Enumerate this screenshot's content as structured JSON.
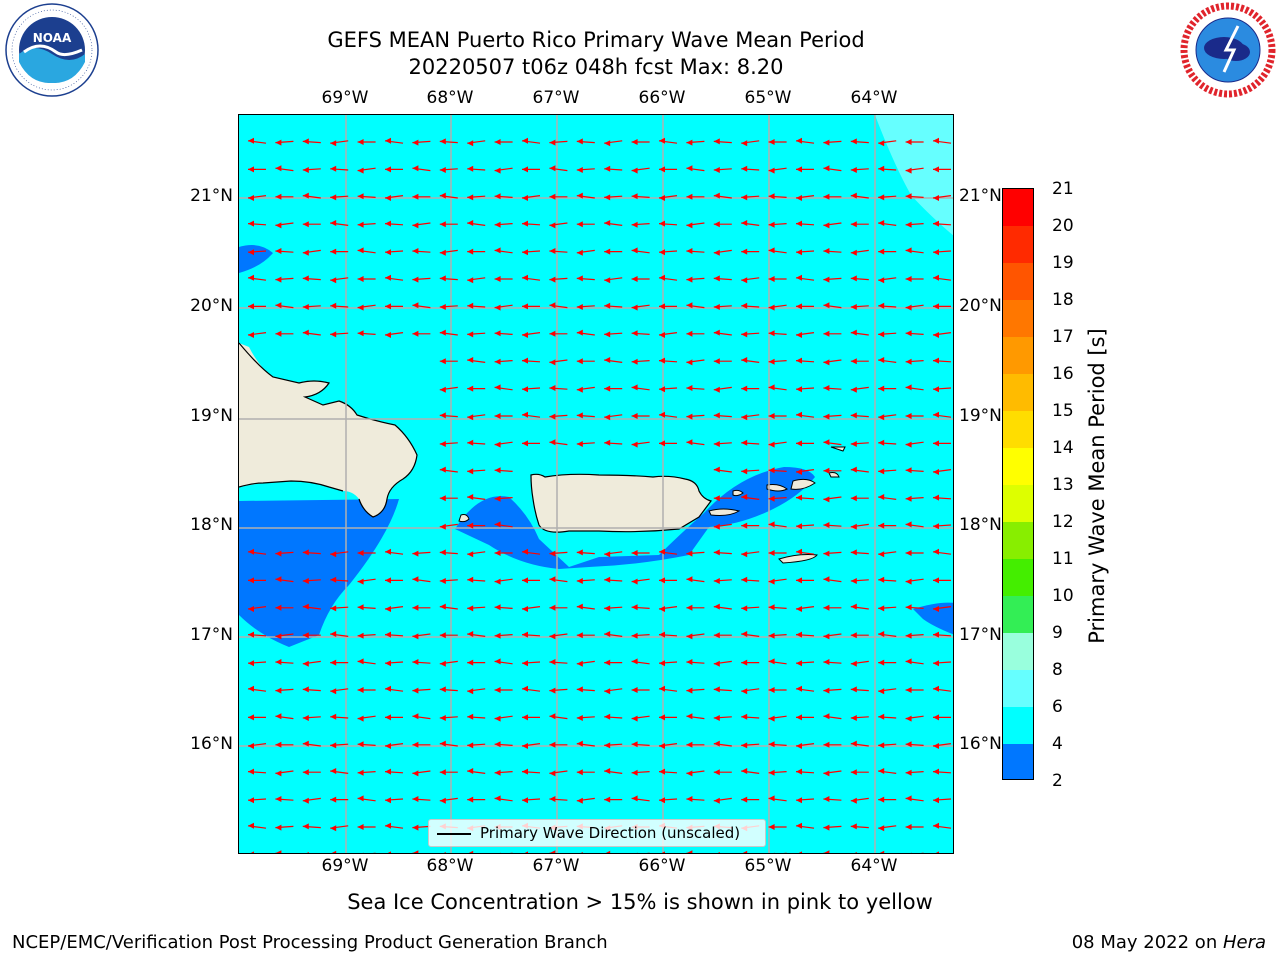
{
  "title": {
    "line1": "GEFS MEAN Puerto Rico Primary Wave Mean Period",
    "line2": "20220507 t06z 048h fcst   Max: 8.20"
  },
  "logos": {
    "left": {
      "text": "NOAA",
      "ring_text": "NATIONAL OCEANIC AND ATMOSPHERIC ADMINISTRATION · U.S. DEPARTMENT OF COMMERCE",
      "icon": "noaa-logo"
    },
    "right": {
      "ring_text": "NATIONAL WEATHER SERVICE",
      "icon": "nws-logo"
    }
  },
  "axes": {
    "lon_labels": [
      "69°W",
      "68°W",
      "67°W",
      "66°W",
      "65°W",
      "64°W"
    ],
    "lat_labels": [
      "21°N",
      "20°N",
      "19°N",
      "18°N",
      "17°N",
      "16°N"
    ]
  },
  "colorbar": {
    "label": "Primary Wave Mean Period [s]",
    "ticks": [
      "21",
      "20",
      "19",
      "18",
      "17",
      "16",
      "15",
      "14",
      "13",
      "12",
      "11",
      "10",
      "9",
      "8",
      "6",
      "4",
      "2"
    ],
    "colors_top_to_bottom": [
      "#ff0000",
      "#ff2a00",
      "#ff5500",
      "#ff7700",
      "#ff9900",
      "#ffbb00",
      "#ffdd00",
      "#ffff00",
      "#ddff00",
      "#bbee00",
      "#88ee00",
      "#44ee00",
      "#00ee00",
      "#33ee55",
      "#99ffdd",
      "#66ffff",
      "#00ffff",
      "#0077ff",
      "#0000ff"
    ]
  },
  "legend": {
    "label": "Primary Wave Direction (unscaled)"
  },
  "note": "Sea Ice Concentration > 15% is shown in pink to yellow",
  "footer": {
    "left": "NCEP/EMC/Verification Post Processing Product Generation Branch",
    "right_prefix": "08 May 2022 on ",
    "right_machine": "Hera"
  },
  "map": {
    "colors": {
      "ocean_6_8": "#00ffff",
      "ocean_4_6": "#0077ff",
      "ocean_8_9": "#66ffff",
      "land": "#efebdb",
      "arrow": "#ff0000",
      "grid": "#b0b0b0"
    },
    "primary_wave_direction": "westward"
  }
}
